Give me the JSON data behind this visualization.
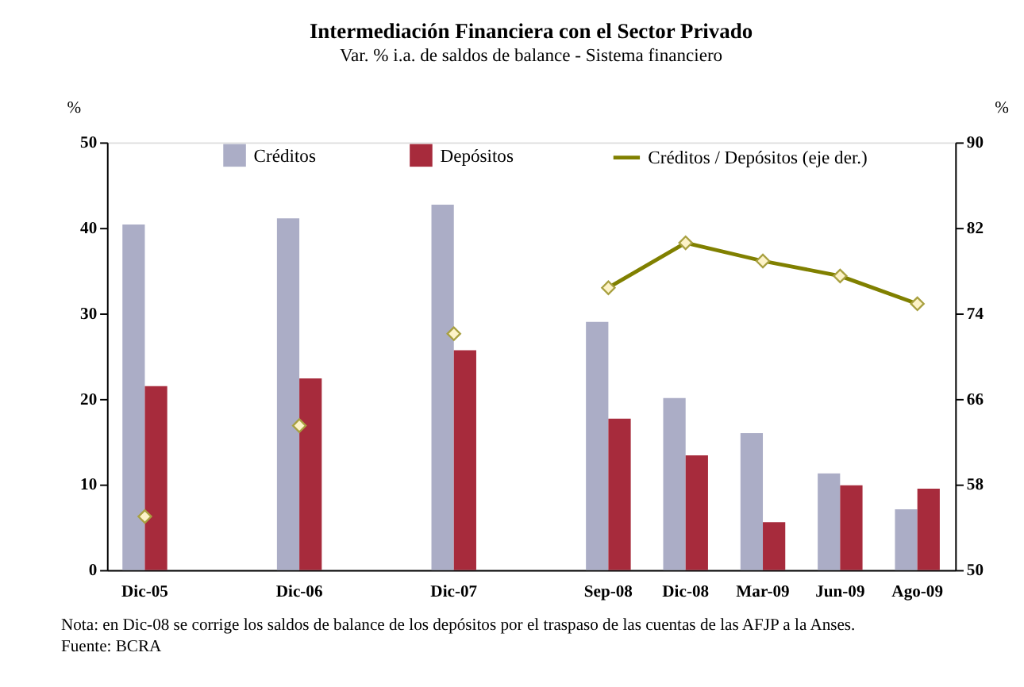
{
  "chart_data": {
    "type": "bar",
    "title": "Intermediación Financiera con el Sector Privado",
    "subtitle": "Var. % i.a. de saldos de balance - Sistema financiero",
    "ylabel": "%",
    "y2label": "%",
    "categories": [
      "Dic-05",
      null,
      "Dic-06",
      null,
      "Dic-07",
      null,
      "Sep-08",
      "Dic-08",
      "Mar-09",
      "Jun-09",
      "Ago-09"
    ],
    "series": [
      {
        "name": "Créditos",
        "color": "#abadc6",
        "values": [
          40.4,
          null,
          41.1,
          null,
          42.7,
          null,
          29.0,
          20.1,
          16.0,
          11.3,
          7.1
        ]
      },
      {
        "name": "Depósitos",
        "color": "#a72b3c",
        "values": [
          21.5,
          null,
          22.4,
          null,
          25.7,
          null,
          17.7,
          13.4,
          5.6,
          9.9,
          9.5
        ]
      },
      {
        "name": "Créditos / Depósitos (eje der.)",
        "type": "line",
        "axis": "y2",
        "color": "#808000",
        "marker": "diamond",
        "values": [
          null,
          null,
          null,
          null,
          null,
          null,
          76.4,
          80.6,
          78.9,
          77.5,
          74.9
        ]
      },
      {
        "type": "scatter",
        "axis": "y2",
        "color": "#fdf3c8",
        "marker": "diamond",
        "values": [
          55.0,
          null,
          63.5,
          null,
          72.1,
          null,
          null,
          null,
          null,
          null,
          null
        ]
      }
    ],
    "ylim": [
      0,
      50
    ],
    "yticks": [
      0,
      10,
      20,
      30,
      40,
      50
    ],
    "y2lim": [
      50,
      90
    ],
    "y2ticks": [
      50,
      58,
      66,
      74,
      82,
      90
    ],
    "legend": "top",
    "grid": false,
    "annotations": [
      "Nota: en Dic-08 se corrige los saldos de balance de los depósitos por el traspaso de las cuentas de las AFJP a la Anses.",
      "Fuente: BCRA"
    ]
  }
}
